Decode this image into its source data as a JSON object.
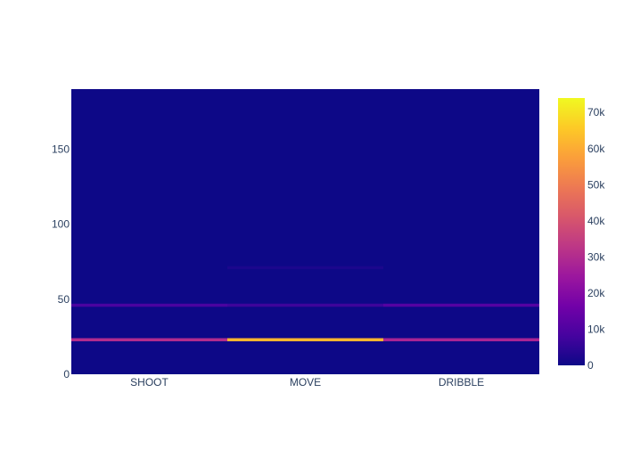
{
  "chart_data": {
    "type": "heatmap",
    "title": "",
    "xlabel": "",
    "ylabel": "",
    "categories": [
      "SHOOT",
      "MOVE",
      "DRIBBLE"
    ],
    "ylim": [
      0,
      190
    ],
    "y_ticks": [
      0,
      50,
      100,
      150
    ],
    "zlim": [
      0,
      74000
    ],
    "colorbar_ticks": [
      {
        "value": 0,
        "label": "0"
      },
      {
        "value": 10000,
        "label": "10k"
      },
      {
        "value": 20000,
        "label": "20k"
      },
      {
        "value": 30000,
        "label": "30k"
      },
      {
        "value": 40000,
        "label": "40k"
      },
      {
        "value": 50000,
        "label": "50k"
      },
      {
        "value": 60000,
        "label": "60k"
      },
      {
        "value": 70000,
        "label": "70k"
      }
    ],
    "colorscale": [
      "#0d0887",
      "#46039f",
      "#7201a8",
      "#9c179e",
      "#bd3786",
      "#d8576b",
      "#ed7953",
      "#fb9f3a",
      "#fdca26",
      "#f0f921"
    ],
    "background_value": 0,
    "bands": [
      {
        "category": "SHOOT",
        "y": 23,
        "value": 30000
      },
      {
        "category": "SHOOT",
        "y": 46,
        "value": 9000
      },
      {
        "category": "MOVE",
        "y": 23,
        "value": 62000
      },
      {
        "category": "MOVE",
        "y": 46,
        "value": 7000
      },
      {
        "category": "MOVE",
        "y": 71,
        "value": 2000
      },
      {
        "category": "DRIBBLE",
        "y": 23,
        "value": 28000
      },
      {
        "category": "DRIBBLE",
        "y": 46,
        "value": 11000
      }
    ]
  }
}
